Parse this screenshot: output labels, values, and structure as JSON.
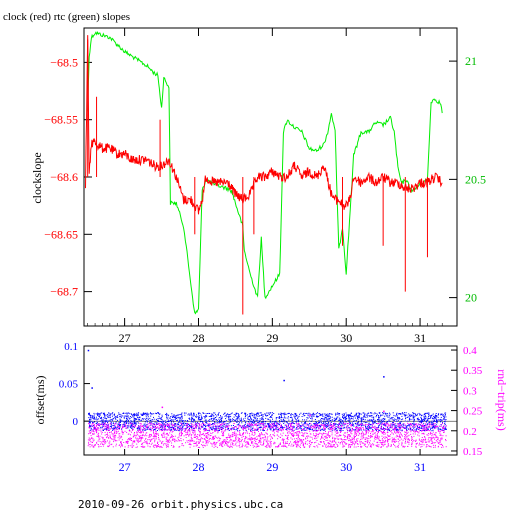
{
  "title": "clock (red) rtc (green) slopes",
  "footer": "2010-09-26 orbit.physics.ubc.ca",
  "colors": {
    "red": "#ff0000",
    "green": "#00ee00",
    "blue": "#0000ff",
    "magenta": "#ff00ff",
    "axis": "#000000"
  },
  "chart_data": [
    {
      "type": "line",
      "title": "clock (red) rtc (green) slopes",
      "xlabel": "",
      "ylabel": "clockslope",
      "xlim": [
        26.45,
        31.5
      ],
      "ylim": [
        -68.73,
        -68.47
      ],
      "y2lim": [
        19.88,
        21.14
      ],
      "x_ticks": [
        27,
        28,
        29,
        30,
        31
      ],
      "y_ticks": [
        -68.5,
        -68.55,
        -68.6,
        -68.65,
        -68.7
      ],
      "y_tick_labels": [
        "−68.5",
        "−68.55",
        "−68.6",
        "−68.65",
        "−68.7"
      ],
      "y2_ticks": [
        21,
        20.5,
        20
      ],
      "series": [
        {
          "name": "clock (red)",
          "color": "#ff0000",
          "axis": "left",
          "points": [
            [
              26.47,
              -68.61
            ],
            [
              26.5,
              -68.48
            ],
            [
              26.52,
              -68.6
            ],
            [
              26.55,
              -68.57
            ],
            [
              26.6,
              -68.57
            ],
            [
              26.7,
              -68.575
            ],
            [
              26.8,
              -68.575
            ],
            [
              26.9,
              -68.58
            ],
            [
              27.0,
              -68.58
            ],
            [
              27.1,
              -68.585
            ],
            [
              27.2,
              -68.585
            ],
            [
              27.3,
              -68.585
            ],
            [
              27.4,
              -68.59
            ],
            [
              27.5,
              -68.59
            ],
            [
              27.6,
              -68.585
            ],
            [
              27.7,
              -68.6
            ],
            [
              27.75,
              -68.61
            ],
            [
              27.8,
              -68.62
            ],
            [
              27.9,
              -68.62
            ],
            [
              28.0,
              -68.63
            ],
            [
              28.05,
              -68.62
            ],
            [
              28.1,
              -68.6
            ],
            [
              28.2,
              -68.605
            ],
            [
              28.3,
              -68.605
            ],
            [
              28.4,
              -68.605
            ],
            [
              28.5,
              -68.615
            ],
            [
              28.6,
              -68.62
            ],
            [
              28.7,
              -68.615
            ],
            [
              28.8,
              -68.6
            ],
            [
              28.9,
              -68.6
            ],
            [
              29.0,
              -68.595
            ],
            [
              29.1,
              -68.6
            ],
            [
              29.2,
              -68.6
            ],
            [
              29.3,
              -68.59
            ],
            [
              29.4,
              -68.6
            ],
            [
              29.5,
              -68.595
            ],
            [
              29.6,
              -68.6
            ],
            [
              29.7,
              -68.59
            ],
            [
              29.8,
              -68.615
            ],
            [
              29.85,
              -68.62
            ],
            [
              29.9,
              -68.62
            ],
            [
              29.95,
              -68.625
            ],
            [
              30.0,
              -68.625
            ],
            [
              30.05,
              -68.62
            ],
            [
              30.1,
              -68.6
            ],
            [
              30.2,
              -68.605
            ],
            [
              30.3,
              -68.6
            ],
            [
              30.4,
              -68.605
            ],
            [
              30.5,
              -68.6
            ],
            [
              30.6,
              -68.605
            ],
            [
              30.7,
              -68.605
            ],
            [
              30.8,
              -68.61
            ],
            [
              30.9,
              -68.61
            ],
            [
              31.0,
              -68.605
            ],
            [
              31.1,
              -68.605
            ],
            [
              31.2,
              -68.6
            ],
            [
              31.3,
              -68.605
            ]
          ],
          "spikes": [
            [
              26.5,
              -68.48
            ],
            [
              26.62,
              -68.53
            ],
            [
              27.48,
              -68.55
            ],
            [
              27.95,
              -68.65
            ],
            [
              28.6,
              -68.72
            ],
            [
              28.75,
              -68.65
            ],
            [
              29.95,
              -68.66
            ],
            [
              30.5,
              -68.66
            ],
            [
              30.8,
              -68.7
            ],
            [
              31.1,
              -68.67
            ]
          ]
        },
        {
          "name": "rtc (green)",
          "color": "#00ee00",
          "axis": "right",
          "points": [
            [
              26.5,
              20.79
            ],
            [
              26.52,
              21.02
            ],
            [
              26.55,
              21.1
            ],
            [
              26.6,
              21.12
            ],
            [
              26.7,
              21.11
            ],
            [
              26.8,
              21.1
            ],
            [
              26.9,
              21.07
            ],
            [
              27.0,
              21.04
            ],
            [
              27.1,
              21.02
            ],
            [
              27.2,
              21.0
            ],
            [
              27.3,
              20.98
            ],
            [
              27.4,
              20.95
            ],
            [
              27.45,
              20.94
            ],
            [
              27.5,
              20.8
            ],
            [
              27.53,
              20.93
            ],
            [
              27.6,
              20.89
            ],
            [
              27.62,
              20.4
            ],
            [
              27.7,
              20.4
            ],
            [
              27.8,
              20.3
            ],
            [
              27.9,
              20.05
            ],
            [
              27.95,
              19.93
            ],
            [
              28.0,
              19.95
            ],
            [
              28.05,
              20.45
            ],
            [
              28.1,
              20.5
            ],
            [
              28.2,
              20.48
            ],
            [
              28.3,
              20.47
            ],
            [
              28.4,
              20.46
            ],
            [
              28.45,
              20.45
            ],
            [
              28.5,
              20.4
            ],
            [
              28.6,
              20.3
            ],
            [
              28.62,
              20.2
            ],
            [
              28.7,
              20.1
            ],
            [
              28.8,
              20.0
            ],
            [
              28.85,
              20.25
            ],
            [
              28.9,
              20.0
            ],
            [
              29.0,
              20.05
            ],
            [
              29.1,
              20.1
            ],
            [
              29.15,
              20.7
            ],
            [
              29.2,
              20.75
            ],
            [
              29.3,
              20.72
            ],
            [
              29.4,
              20.7
            ],
            [
              29.5,
              20.63
            ],
            [
              29.6,
              20.62
            ],
            [
              29.7,
              20.65
            ],
            [
              29.75,
              20.7
            ],
            [
              29.8,
              20.78
            ],
            [
              29.85,
              20.7
            ],
            [
              29.9,
              20.2
            ],
            [
              29.95,
              20.3
            ],
            [
              30.0,
              20.1
            ],
            [
              30.1,
              20.6
            ],
            [
              30.2,
              20.7
            ],
            [
              30.3,
              20.7
            ],
            [
              30.4,
              20.74
            ],
            [
              30.5,
              20.73
            ],
            [
              30.6,
              20.76
            ],
            [
              30.65,
              20.7
            ],
            [
              30.7,
              20.55
            ],
            [
              30.75,
              20.48
            ],
            [
              30.8,
              20.5
            ],
            [
              30.9,
              20.45
            ],
            [
              31.0,
              20.48
            ],
            [
              31.1,
              20.5
            ],
            [
              31.15,
              20.83
            ],
            [
              31.2,
              20.84
            ],
            [
              31.28,
              20.82
            ],
            [
              31.3,
              20.78
            ]
          ]
        }
      ]
    },
    {
      "type": "scatter",
      "xlabel": "",
      "ylabel": "offset(ms)",
      "y2label": "rnd−trip(ms)",
      "xlim": [
        26.45,
        31.5
      ],
      "ylim": [
        -0.045,
        0.1
      ],
      "y2lim": [
        0.14,
        0.41
      ],
      "x_ticks": [
        27,
        28,
        29,
        30,
        31
      ],
      "y_ticks": [
        0.1,
        0.05,
        0
      ],
      "y2_ticks": [
        0.4,
        0.35,
        0.3,
        0.25,
        0.2,
        0.15
      ],
      "series": [
        {
          "name": "offset(ms)",
          "color": "#0000ff",
          "axis": "left",
          "band": [
            -0.012,
            0.012
          ],
          "outliers": [
            [
              26.5,
              0.095
            ],
            [
              26.55,
              0.045
            ],
            [
              29.15,
              0.055
            ],
            [
              30.5,
              0.06
            ]
          ]
        },
        {
          "name": "rnd−trip(ms)",
          "color": "#ff00ff",
          "axis": "right",
          "band": [
            0.16,
            0.22
          ],
          "outliers": [
            [
              27.5,
              0.26
            ],
            [
              29.5,
              0.24
            ],
            [
              30.5,
              0.25
            ]
          ]
        }
      ]
    }
  ]
}
